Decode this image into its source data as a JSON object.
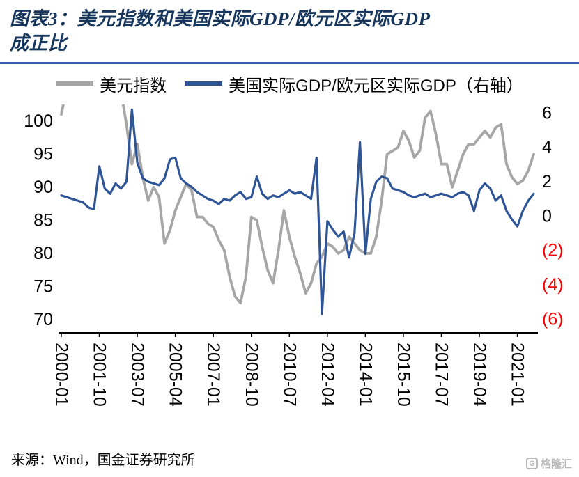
{
  "header": {
    "title_line1": "图表3：美元指数和美国实际GDP/欧元区实际GDP",
    "title_line2": "成正比"
  },
  "footer": {
    "source": "来源：Wind，国金证券研究所",
    "watermark_text": "格隆汇",
    "watermark_glyph": "G"
  },
  "colors": {
    "gray_series": "#a6a6a6",
    "blue_series": "#2f5597",
    "divider_blue": "#2f5cb0",
    "title_navy": "#16365c",
    "negative_red": "#ff0000",
    "axis_black": "#000000",
    "watermark_gray": "#b9b9b9"
  },
  "chart_data": {
    "type": "line",
    "title": "图表3：美元指数和美国实际GDP/欧元区实际GDP成正比",
    "legend_position": "top",
    "grid": false,
    "categories": [
      "2000-01",
      "2000-04",
      "2000-07",
      "2000-10",
      "2001-01",
      "2001-04",
      "2001-07",
      "2001-10",
      "2002-01",
      "2002-04",
      "2002-07",
      "2002-10",
      "2003-01",
      "2003-04",
      "2003-07",
      "2003-10",
      "2004-01",
      "2004-04",
      "2004-07",
      "2004-10",
      "2005-01",
      "2005-04",
      "2005-07",
      "2005-10",
      "2006-01",
      "2006-04",
      "2006-07",
      "2006-10",
      "2007-01",
      "2007-04",
      "2007-07",
      "2007-10",
      "2008-01",
      "2008-04",
      "2008-07",
      "2008-10",
      "2009-01",
      "2009-04",
      "2009-07",
      "2009-10",
      "2010-01",
      "2010-04",
      "2010-07",
      "2010-10",
      "2011-01",
      "2011-04",
      "2011-07",
      "2011-10",
      "2012-01",
      "2012-04",
      "2012-07",
      "2012-10",
      "2013-01",
      "2013-04",
      "2013-07",
      "2013-10",
      "2014-01",
      "2014-04",
      "2014-07",
      "2014-10",
      "2015-01",
      "2015-04",
      "2015-07",
      "2015-10",
      "2016-01",
      "2016-04",
      "2016-07",
      "2016-10",
      "2017-01",
      "2017-04",
      "2017-07",
      "2017-10",
      "2018-01",
      "2018-04",
      "2018-07",
      "2018-10",
      "2019-01",
      "2019-04",
      "2019-07",
      "2019-10",
      "2020-01",
      "2020-04",
      "2020-07",
      "2020-10",
      "2021-01",
      "2021-04",
      "2021-07",
      "2021-10"
    ],
    "series": [
      {
        "name": "美元指数",
        "axis": "left",
        "color_key": "gray_series",
        "values": [
          101,
          105,
          108,
          110,
          112,
          116,
          114,
          116,
          118,
          115,
          107,
          104.5,
          99.5,
          93.5,
          96.5,
          91.5,
          88,
          90,
          88.5,
          81.5,
          83.5,
          86.5,
          88.5,
          90.5,
          89.5,
          85.5,
          85.5,
          84.5,
          84,
          82,
          80.5,
          76.5,
          73.5,
          72.5,
          76.5,
          85.5,
          85,
          81,
          77.5,
          75.5,
          80.5,
          86.5,
          82.5,
          79.5,
          77,
          74,
          75.5,
          78.5,
          79.5,
          81.5,
          81,
          80,
          80.5,
          82.5,
          81.5,
          80.5,
          80,
          80,
          82.5,
          88,
          95,
          95.5,
          96,
          98.5,
          97,
          94.5,
          95.5,
          100.5,
          101.5,
          98,
          93.5,
          93.5,
          90,
          92.5,
          95,
          96.5,
          96.5,
          97.5,
          98.5,
          97.5,
          99,
          99.5,
          93.5,
          91.5,
          90.5,
          91,
          92.5,
          95
        ]
      },
      {
        "name": "美国实际GDP/欧元区实际GDP（右轴）",
        "axis": "right",
        "color_key": "blue_series",
        "values": [
          1.2,
          1.1,
          1.0,
          0.9,
          0.8,
          0.5,
          0.4,
          2.9,
          1.6,
          1.3,
          1.9,
          1.6,
          2.0,
          6.2,
          3.1,
          2.2,
          2.0,
          1.9,
          1.8,
          2.2,
          3.3,
          3.4,
          2.2,
          1.9,
          1.7,
          1.4,
          1.2,
          1.0,
          0.9,
          0.7,
          1.0,
          0.9,
          1.2,
          1.4,
          1.0,
          1.1,
          2.3,
          1.3,
          1.0,
          1.2,
          1.1,
          1.3,
          1.5,
          1.3,
          1.4,
          1.2,
          1.0,
          3.4,
          -5.7,
          -0.3,
          -0.8,
          -1.2,
          -0.9,
          -2.4,
          -1.0,
          4.3,
          -2.2,
          1.0,
          2.0,
          2.3,
          2.2,
          1.6,
          1.5,
          1.4,
          1.2,
          1.1,
          1.2,
          1.3,
          1.1,
          1.2,
          1.3,
          1.2,
          1.1,
          1.3,
          1.4,
          1.2,
          0.3,
          1.5,
          1.9,
          1.6,
          0.9,
          1.2,
          0.3,
          -0.2,
          -0.6,
          0.3,
          0.9,
          1.3
        ]
      }
    ],
    "left_axis": {
      "min": 68,
      "max": 102.5,
      "ticks": [
        100,
        95,
        90,
        85,
        80,
        75,
        70
      ]
    },
    "right_axis": {
      "min": -6.8,
      "max": 6.5,
      "ticks": [
        {
          "value": 6,
          "label": "6"
        },
        {
          "value": 4,
          "label": "4"
        },
        {
          "value": 2,
          "label": "2"
        },
        {
          "value": 0,
          "label": "0"
        },
        {
          "value": -2,
          "label": "(2)"
        },
        {
          "value": -4,
          "label": "(4)"
        },
        {
          "value": -6,
          "label": "(6)"
        }
      ]
    },
    "x_tick_labels": [
      "2000-01",
      "2001-10",
      "2003-07",
      "2005-04",
      "2007-01",
      "2008-10",
      "2010-07",
      "2012-04",
      "2014-01",
      "2015-10",
      "2017-07",
      "2019-04",
      "2021-01"
    ],
    "x_tick_interval": 7
  }
}
